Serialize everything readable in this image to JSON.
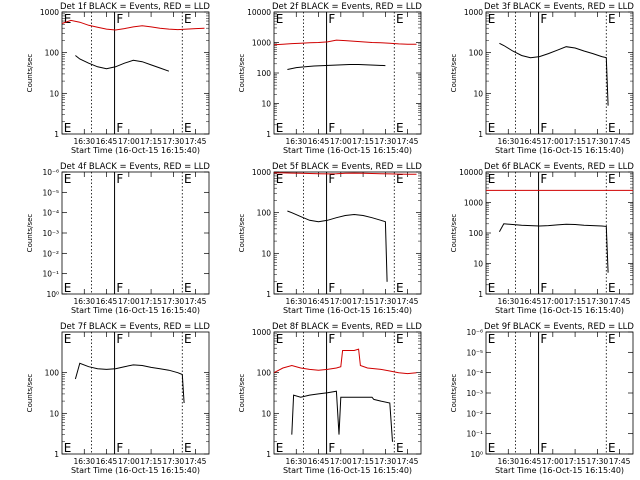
{
  "colors": {
    "events": "#000000",
    "lld": "#d00000",
    "background": "#ffffff"
  },
  "chart_data": [
    {
      "type": "line",
      "title": "Det 1f BLACK = Events, RED = LLD",
      "ylabel": "Counts/sec",
      "xlabel": "Start Time (16-Oct-15 16:15:40)",
      "scale": "log",
      "ytick_labels": [
        "1",
        "10",
        "100",
        "1000"
      ],
      "ytick_values": [
        1,
        10,
        100,
        1000
      ],
      "ylim": [
        1,
        1000
      ],
      "xlim": [
        16.25,
        17.9
      ],
      "xtick_labels": [
        "16:30",
        "16:45",
        "17:00",
        "17:15",
        "17:30",
        "17:45"
      ],
      "xtick_values": [
        16.5,
        16.75,
        17.0,
        17.25,
        17.5,
        17.75
      ],
      "dotted_lines": [
        16.58,
        17.6
      ],
      "solid_line": 16.84,
      "flags": [
        "E",
        "F",
        "E"
      ],
      "flag_positions": [
        16.27,
        16.86,
        17.62
      ],
      "series": [
        {
          "name": "BLACK = Events",
          "color": "#000000",
          "x": [
            16.4,
            16.45,
            16.55,
            16.65,
            16.75,
            16.85,
            16.95,
            17.05,
            17.15,
            17.25,
            17.35,
            17.45
          ],
          "y": [
            85,
            70,
            55,
            45,
            40,
            45,
            55,
            65,
            60,
            50,
            42,
            35
          ]
        },
        {
          "name": "RED = LLD",
          "color": "#d00000",
          "x": [
            16.25,
            16.35,
            16.45,
            16.55,
            16.65,
            16.75,
            16.85,
            16.95,
            17.05,
            17.15,
            17.25,
            17.35,
            17.45,
            17.55,
            17.65,
            17.75,
            17.85
          ],
          "y": [
            520,
            620,
            560,
            470,
            420,
            380,
            360,
            390,
            430,
            460,
            430,
            400,
            380,
            370,
            380,
            390,
            400
          ]
        }
      ]
    },
    {
      "type": "line",
      "title": "Det 2f BLACK = Events, RED = LLD",
      "ylabel": "Counts/sec",
      "xlabel": "Start Time (16-Oct-15 16:15:40)",
      "scale": "log",
      "ytick_labels": [
        "1",
        "10",
        "100",
        "1000",
        "10000"
      ],
      "ytick_values": [
        1,
        10,
        100,
        1000,
        10000
      ],
      "ylim": [
        1,
        10000
      ],
      "xlim": [
        16.25,
        17.9
      ],
      "xtick_labels": [
        "16:30",
        "16:45",
        "17:00",
        "17:15",
        "17:30",
        "17:45"
      ],
      "xtick_values": [
        16.5,
        16.75,
        17.0,
        17.25,
        17.5,
        17.75
      ],
      "dotted_lines": [
        16.58,
        17.6
      ],
      "solid_line": 16.84,
      "flags": [
        "E",
        "F",
        "E"
      ],
      "flag_positions": [
        16.27,
        16.86,
        17.62
      ],
      "series": [
        {
          "name": "BLACK = Events",
          "color": "#000000",
          "x": [
            16.4,
            16.5,
            16.6,
            16.7,
            16.8,
            16.9,
            17.0,
            17.1,
            17.2,
            17.3,
            17.4,
            17.5
          ],
          "y": [
            130,
            150,
            160,
            170,
            175,
            180,
            185,
            190,
            190,
            185,
            180,
            175
          ]
        },
        {
          "name": "RED = LLD",
          "color": "#d00000",
          "x": [
            16.25,
            16.35,
            16.45,
            16.55,
            16.65,
            16.75,
            16.85,
            16.95,
            17.05,
            17.15,
            17.25,
            17.35,
            17.45,
            17.55,
            17.65,
            17.75,
            17.85
          ],
          "y": [
            850,
            880,
            920,
            950,
            980,
            1000,
            1050,
            1200,
            1150,
            1100,
            1050,
            1000,
            980,
            950,
            900,
            880,
            870
          ]
        }
      ]
    },
    {
      "type": "line",
      "title": "Det 3f BLACK = Events, RED = LLD",
      "ylabel": "Counts/sec",
      "xlabel": "Start Time (16-Oct-15 16:15:40)",
      "scale": "log",
      "ytick_labels": [
        "1",
        "10",
        "100",
        "1000"
      ],
      "ytick_values": [
        1,
        10,
        100,
        1000
      ],
      "ylim": [
        1,
        1000
      ],
      "xlim": [
        16.25,
        17.9
      ],
      "xtick_labels": [
        "16:30",
        "16:45",
        "17:00",
        "17:15",
        "17:30",
        "17:45"
      ],
      "xtick_values": [
        16.5,
        16.75,
        17.0,
        17.25,
        17.5,
        17.75
      ],
      "dotted_lines": [
        16.58,
        17.6
      ],
      "solid_line": 16.84,
      "flags": [
        "E",
        "F",
        "E"
      ],
      "flag_positions": [
        16.27,
        16.86,
        17.62
      ],
      "series": [
        {
          "name": "BLACK = Events",
          "color": "#000000",
          "x": [
            16.4,
            16.45,
            16.55,
            16.65,
            16.75,
            16.85,
            16.95,
            17.05,
            17.15,
            17.25,
            17.35,
            17.45,
            17.55,
            17.6,
            17.62
          ],
          "y": [
            170,
            150,
            110,
            85,
            75,
            80,
            95,
            115,
            140,
            130,
            110,
            95,
            80,
            75,
            5
          ]
        }
      ]
    },
    {
      "type": "line",
      "title": "Det 4f BLACK = Events, RED = LLD",
      "ylabel": "Counts/sec",
      "xlabel": "Start Time (16-Oct-15 16:15:40)",
      "scale": "log",
      "ytick_labels": [
        "10⁰",
        "10⁻¹",
        "10⁻²",
        "10⁻³",
        "10⁻⁴",
        "10⁻⁵",
        "10⁻⁶"
      ],
      "ylim": [
        1,
        1000000
      ],
      "xlim": [
        16.25,
        17.9
      ],
      "xtick_labels": [
        "16:30",
        "16:45",
        "17:00",
        "17:15",
        "17:30",
        "17:45"
      ],
      "xtick_values": [
        16.5,
        16.75,
        17.0,
        17.25,
        17.5,
        17.75
      ],
      "dotted_lines": [
        16.58,
        17.6
      ],
      "solid_line": 16.84,
      "flags": [
        "E",
        "F",
        "E"
      ],
      "flag_positions": [
        16.27,
        16.86,
        17.62
      ],
      "series": []
    },
    {
      "type": "line",
      "title": "Det 5f BLACK = Events, RED = LLD",
      "ylabel": "Counts/sec",
      "xlabel": "Start Time (16-Oct-15 16:15:40)",
      "scale": "log",
      "ytick_labels": [
        "1",
        "10",
        "100",
        "1000"
      ],
      "ytick_values": [
        1,
        10,
        100,
        1000
      ],
      "ylim": [
        1,
        1000
      ],
      "xlim": [
        16.25,
        17.9
      ],
      "xtick_labels": [
        "16:30",
        "16:45",
        "17:00",
        "17:15",
        "17:30",
        "17:45"
      ],
      "xtick_values": [
        16.5,
        16.75,
        17.0,
        17.25,
        17.5,
        17.75
      ],
      "dotted_lines": [
        16.58,
        17.6
      ],
      "solid_line": 16.84,
      "flags": [
        "E",
        "F",
        "E"
      ],
      "flag_positions": [
        16.27,
        16.86,
        17.62
      ],
      "series": [
        {
          "name": "BLACK = Events",
          "color": "#000000",
          "x": [
            16.4,
            16.45,
            16.55,
            16.65,
            16.75,
            16.85,
            16.95,
            17.05,
            17.15,
            17.25,
            17.35,
            17.45,
            17.5,
            17.52
          ],
          "y": [
            110,
            100,
            80,
            65,
            60,
            65,
            75,
            85,
            90,
            85,
            75,
            65,
            60,
            2
          ]
        },
        {
          "name": "RED = LLD",
          "color": "#d00000",
          "x": [
            16.25,
            16.35,
            16.45,
            16.55,
            16.65,
            16.75,
            16.85,
            16.95,
            17.05,
            17.15,
            17.25,
            17.35,
            17.45,
            17.55,
            17.65,
            17.75,
            17.85
          ],
          "y": [
            950,
            950,
            940,
            930,
            920,
            910,
            900,
            910,
            930,
            940,
            930,
            920,
            910,
            900,
            890,
            880,
            880
          ]
        }
      ]
    },
    {
      "type": "line",
      "title": "Det 6f BLACK = Events, RED = LLD",
      "ylabel": "Counts/sec",
      "xlabel": "Start Time (16-Oct-15 16:15:40)",
      "scale": "log",
      "ytick_labels": [
        "1",
        "10",
        "100",
        "1000",
        "10000"
      ],
      "ytick_values": [
        1,
        10,
        100,
        1000,
        10000
      ],
      "ylim": [
        1,
        10000
      ],
      "xlim": [
        16.25,
        17.9
      ],
      "xtick_labels": [
        "16:30",
        "16:45",
        "17:00",
        "17:15",
        "17:30",
        "17:45"
      ],
      "xtick_values": [
        16.5,
        16.75,
        17.0,
        17.25,
        17.5,
        17.75
      ],
      "dotted_lines": [
        16.58,
        17.6
      ],
      "solid_line": 16.84,
      "flags": [
        "E",
        "F",
        "E"
      ],
      "flag_positions": [
        16.27,
        16.86,
        17.62
      ],
      "series": [
        {
          "name": "BLACK = Events",
          "color": "#000000",
          "x": [
            16.4,
            16.45,
            16.55,
            16.65,
            16.75,
            16.85,
            16.95,
            17.05,
            17.15,
            17.25,
            17.35,
            17.45,
            17.55,
            17.6,
            17.62
          ],
          "y": [
            110,
            200,
            190,
            180,
            175,
            170,
            175,
            185,
            195,
            190,
            180,
            175,
            170,
            165,
            5
          ]
        },
        {
          "name": "RED = LLD",
          "color": "#d00000",
          "x": [
            16.25,
            17.9
          ],
          "y": [
            2500,
            2500
          ]
        }
      ]
    },
    {
      "type": "line",
      "title": "Det 7f BLACK = Events, RED = LLD",
      "ylabel": "Counts/sec",
      "xlabel": "Start Time (16-Oct-15 16:15:40)",
      "scale": "log",
      "ytick_labels": [
        "1",
        "10",
        "100"
      ],
      "ytick_values": [
        1,
        10,
        100
      ],
      "ylim": [
        1,
        1000
      ],
      "xlim": [
        16.25,
        17.9
      ],
      "xtick_labels": [
        "16:30",
        "16:45",
        "17:00",
        "17:15",
        "17:30",
        "17:45"
      ],
      "xtick_values": [
        16.5,
        16.75,
        17.0,
        17.25,
        17.5,
        17.75
      ],
      "dotted_lines": [
        16.58,
        17.6
      ],
      "solid_line": 16.84,
      "flags": [
        "E",
        "F",
        "E"
      ],
      "flag_positions": [
        16.27,
        16.86,
        17.62
      ],
      "series": [
        {
          "name": "BLACK = Events",
          "color": "#000000",
          "x": [
            16.4,
            16.45,
            16.55,
            16.65,
            16.75,
            16.85,
            16.95,
            17.05,
            17.15,
            17.25,
            17.35,
            17.45,
            17.55,
            17.6,
            17.62
          ],
          "y": [
            70,
            170,
            140,
            125,
            120,
            125,
            140,
            155,
            150,
            135,
            125,
            115,
            100,
            90,
            18
          ]
        }
      ]
    },
    {
      "type": "line",
      "title": "Det 8f BLACK = Events, RED = LLD",
      "ylabel": "Counts/sec",
      "xlabel": "Start Time (16-Oct-15 16:15:40)",
      "scale": "log",
      "ytick_labels": [
        "1",
        "10",
        "100",
        "1000"
      ],
      "ytick_values": [
        1,
        10,
        100,
        1000
      ],
      "ylim": [
        1,
        1000
      ],
      "xlim": [
        16.25,
        17.9
      ],
      "xtick_labels": [
        "16:30",
        "16:45",
        "17:00",
        "17:15",
        "17:30",
        "17:45"
      ],
      "xtick_values": [
        16.5,
        16.75,
        17.0,
        17.25,
        17.5,
        17.75
      ],
      "dotted_lines": [
        16.58,
        17.6
      ],
      "solid_line": 16.84,
      "flags": [
        "E",
        "F",
        "E"
      ],
      "flag_positions": [
        16.27,
        16.86,
        17.62
      ],
      "series": [
        {
          "name": "BLACK = Events",
          "color": "#000000",
          "x": [
            16.45,
            16.47,
            16.55,
            16.65,
            16.75,
            16.85,
            16.95,
            16.98,
            17.0,
            17.35,
            17.37,
            17.45,
            17.55,
            17.58
          ],
          "y": [
            3,
            28,
            25,
            28,
            30,
            32,
            35,
            3,
            25,
            25,
            22,
            20,
            18,
            2
          ]
        },
        {
          "name": "RED = LLD",
          "color": "#d00000",
          "x": [
            16.25,
            16.35,
            16.45,
            16.55,
            16.65,
            16.75,
            16.85,
            16.95,
            17.0,
            17.02,
            17.15,
            17.2,
            17.22,
            17.3,
            17.45,
            17.55,
            17.65,
            17.75,
            17.85
          ],
          "y": [
            100,
            130,
            150,
            130,
            120,
            115,
            120,
            130,
            140,
            350,
            350,
            380,
            150,
            130,
            120,
            110,
            100,
            95,
            100
          ]
        }
      ]
    },
    {
      "type": "line",
      "title": "Det 9f BLACK = Events, RED = LLD",
      "ylabel": "Counts/sec",
      "xlabel": "Start Time (16-Oct-15 16:15:40)",
      "scale": "log",
      "ytick_labels": [
        "10⁰",
        "10⁻¹",
        "10⁻²",
        "10⁻³",
        "10⁻⁴",
        "10⁻⁵",
        "10⁻⁶"
      ],
      "ylim": [
        1,
        1000000
      ],
      "xlim": [
        16.25,
        17.9
      ],
      "xtick_labels": [
        "16:30",
        "16:45",
        "17:00",
        "17:15",
        "17:30",
        "17:45"
      ],
      "xtick_values": [
        16.5,
        16.75,
        17.0,
        17.25,
        17.5,
        17.75
      ],
      "dotted_lines": [
        16.58,
        17.6
      ],
      "solid_line": 16.84,
      "flags": [
        "E",
        "F",
        "E"
      ],
      "flag_positions": [
        16.27,
        16.86,
        17.62
      ],
      "series": []
    }
  ]
}
